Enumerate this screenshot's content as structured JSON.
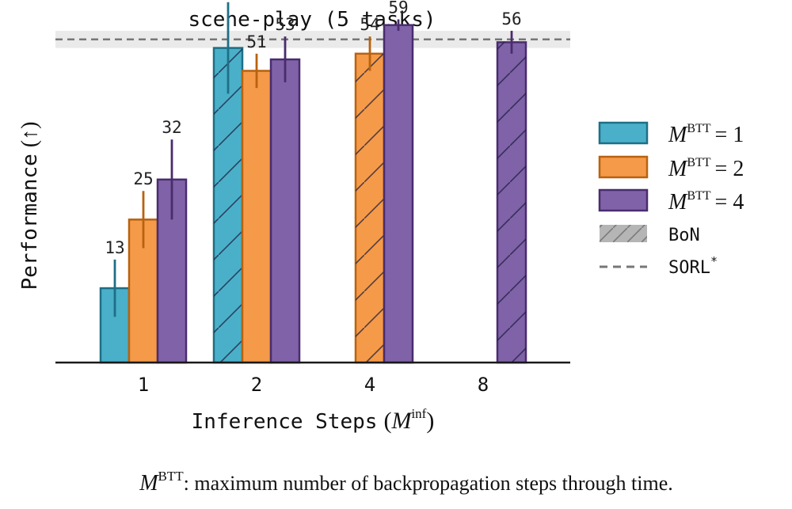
{
  "chart_data": {
    "type": "bar",
    "title": "scene-play (5 tasks)",
    "xlabel": "Inference Steps",
    "xlabel_symbol": "M",
    "xlabel_sup": "inf",
    "ylabel": "Performance",
    "ylabel_arrow": "(↑)",
    "categories": [
      "1",
      "2",
      "4",
      "8"
    ],
    "ylim": [
      0,
      62
    ],
    "grid": false,
    "legend_position": "right",
    "series": [
      {
        "name": "M^BTT = 1",
        "sym": "M",
        "sup": "BTT",
        "eq": "= 1",
        "color": "#4ab0c9",
        "edge": "#1e6f86",
        "values": [
          13,
          55,
          null,
          null
        ],
        "errors": [
          5,
          8,
          null,
          null
        ],
        "hatched": [
          false,
          true,
          false,
          false
        ]
      },
      {
        "name": "M^BTT = 2",
        "sym": "M",
        "sup": "BTT",
        "eq": "= 2",
        "color": "#f59a48",
        "edge": "#b8620f",
        "values": [
          25,
          51,
          54,
          null
        ],
        "errors": [
          5,
          3,
          3,
          null
        ],
        "hatched": [
          false,
          false,
          true,
          false
        ]
      },
      {
        "name": "M^BTT = 4",
        "sym": "M",
        "sup": "BTT",
        "eq": "= 4",
        "color": "#7f62a8",
        "edge": "#4a2c6e",
        "values": [
          32,
          53,
          59,
          56
        ],
        "errors": [
          7,
          4,
          1,
          2
        ],
        "hatched": [
          false,
          false,
          false,
          true
        ]
      }
    ],
    "reference": {
      "bon_label": "BoN",
      "sorl_label": "SORL",
      "sorl_mark": "*",
      "sorl_value": 56.5,
      "band": [
        55,
        58
      ]
    }
  },
  "caption": {
    "sym": "M",
    "sup": "BTT",
    "text": ": maximum number of backpropagation steps through time."
  }
}
